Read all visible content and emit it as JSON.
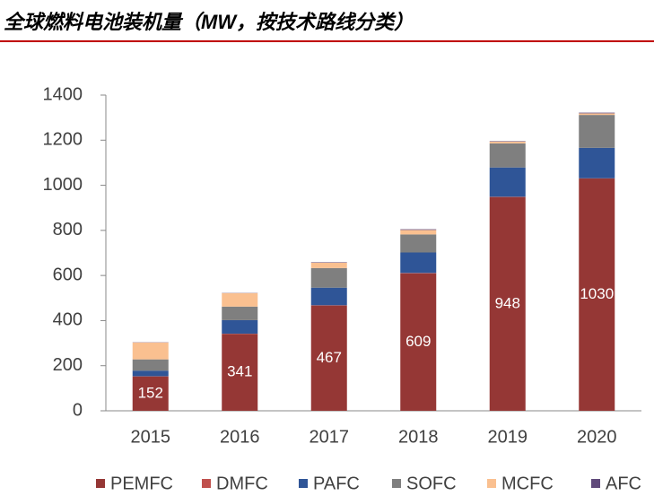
{
  "chart_data": {
    "type": "stacked_bar",
    "title": "全球燃料电池装机量（MW，按技术路线分类）",
    "categories": [
      "2015",
      "2016",
      "2017",
      "2018",
      "2019",
      "2020"
    ],
    "series": [
      {
        "name": "PEMFC",
        "color": "#953735",
        "values": [
          152,
          341,
          467,
          609,
          948,
          1030
        ]
      },
      {
        "name": "DMFC",
        "color": "#c0504d",
        "values": [
          1,
          1,
          1,
          2,
          1,
          1
        ]
      },
      {
        "name": "PAFC",
        "color": "#2f5597",
        "values": [
          25,
          60,
          78,
          91,
          130,
          135
        ]
      },
      {
        "name": "SOFC",
        "color": "#7f7f7f",
        "values": [
          50,
          60,
          87,
          80,
          107,
          146
        ]
      },
      {
        "name": "MCFC",
        "color": "#fac090",
        "values": [
          75,
          60,
          24,
          20,
          8,
          7
        ]
      },
      {
        "name": "AFC",
        "color": "#604a7b",
        "values": [
          1,
          1,
          2,
          3,
          2,
          3
        ]
      }
    ],
    "label_series": 0,
    "ylim": [
      0,
      1400
    ],
    "yticks": [
      0,
      200,
      400,
      600,
      800,
      1000,
      1200,
      1400
    ],
    "grid": false
  }
}
